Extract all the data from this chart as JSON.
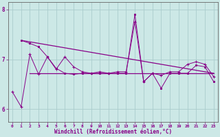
{
  "bg_color": "#cce8e6",
  "line_color": "#880088",
  "grid_color": "#aacccc",
  "xlabel": "Windchill (Refroidissement éolien,°C)",
  "xlabel_color": "#880088",
  "tick_color": "#880088",
  "axis_color": "#666666",
  "xlim": [
    -0.5,
    23.5
  ],
  "ylim": [
    5.75,
    8.15
  ],
  "yticks": [
    6,
    7,
    8
  ],
  "xticks": [
    0,
    1,
    2,
    3,
    4,
    5,
    6,
    7,
    8,
    9,
    10,
    11,
    12,
    13,
    14,
    15,
    16,
    17,
    18,
    19,
    20,
    21,
    22,
    23
  ],
  "s1_x": [
    0,
    1,
    2,
    3,
    4,
    5,
    6,
    7,
    8,
    9,
    10,
    11,
    12,
    13,
    14,
    15,
    16,
    17,
    18,
    19,
    20,
    21,
    22,
    23
  ],
  "s1_y": [
    6.35,
    6.05,
    7.1,
    6.7,
    7.05,
    6.8,
    7.05,
    6.85,
    6.75,
    6.72,
    6.75,
    6.72,
    6.75,
    6.75,
    7.75,
    6.55,
    6.72,
    6.68,
    6.75,
    6.75,
    6.9,
    6.95,
    6.9,
    6.65
  ],
  "s2_x": [
    1,
    2,
    3,
    4,
    5,
    6,
    7,
    8,
    9,
    10,
    11,
    12,
    13,
    14,
    15,
    16,
    17,
    18,
    19,
    20,
    21,
    22,
    23
  ],
  "s2_y": [
    7.38,
    7.32,
    7.25,
    7.05,
    6.82,
    6.72,
    6.7,
    6.72,
    6.72,
    6.72,
    6.72,
    6.72,
    6.72,
    7.9,
    6.55,
    6.72,
    6.42,
    6.72,
    6.72,
    6.72,
    6.88,
    6.85,
    6.55
  ],
  "trend1_x": [
    1,
    23
  ],
  "trend1_y": [
    7.38,
    6.72
  ],
  "trend2_x": [
    2,
    23
  ],
  "trend2_y": [
    6.72,
    6.72
  ]
}
